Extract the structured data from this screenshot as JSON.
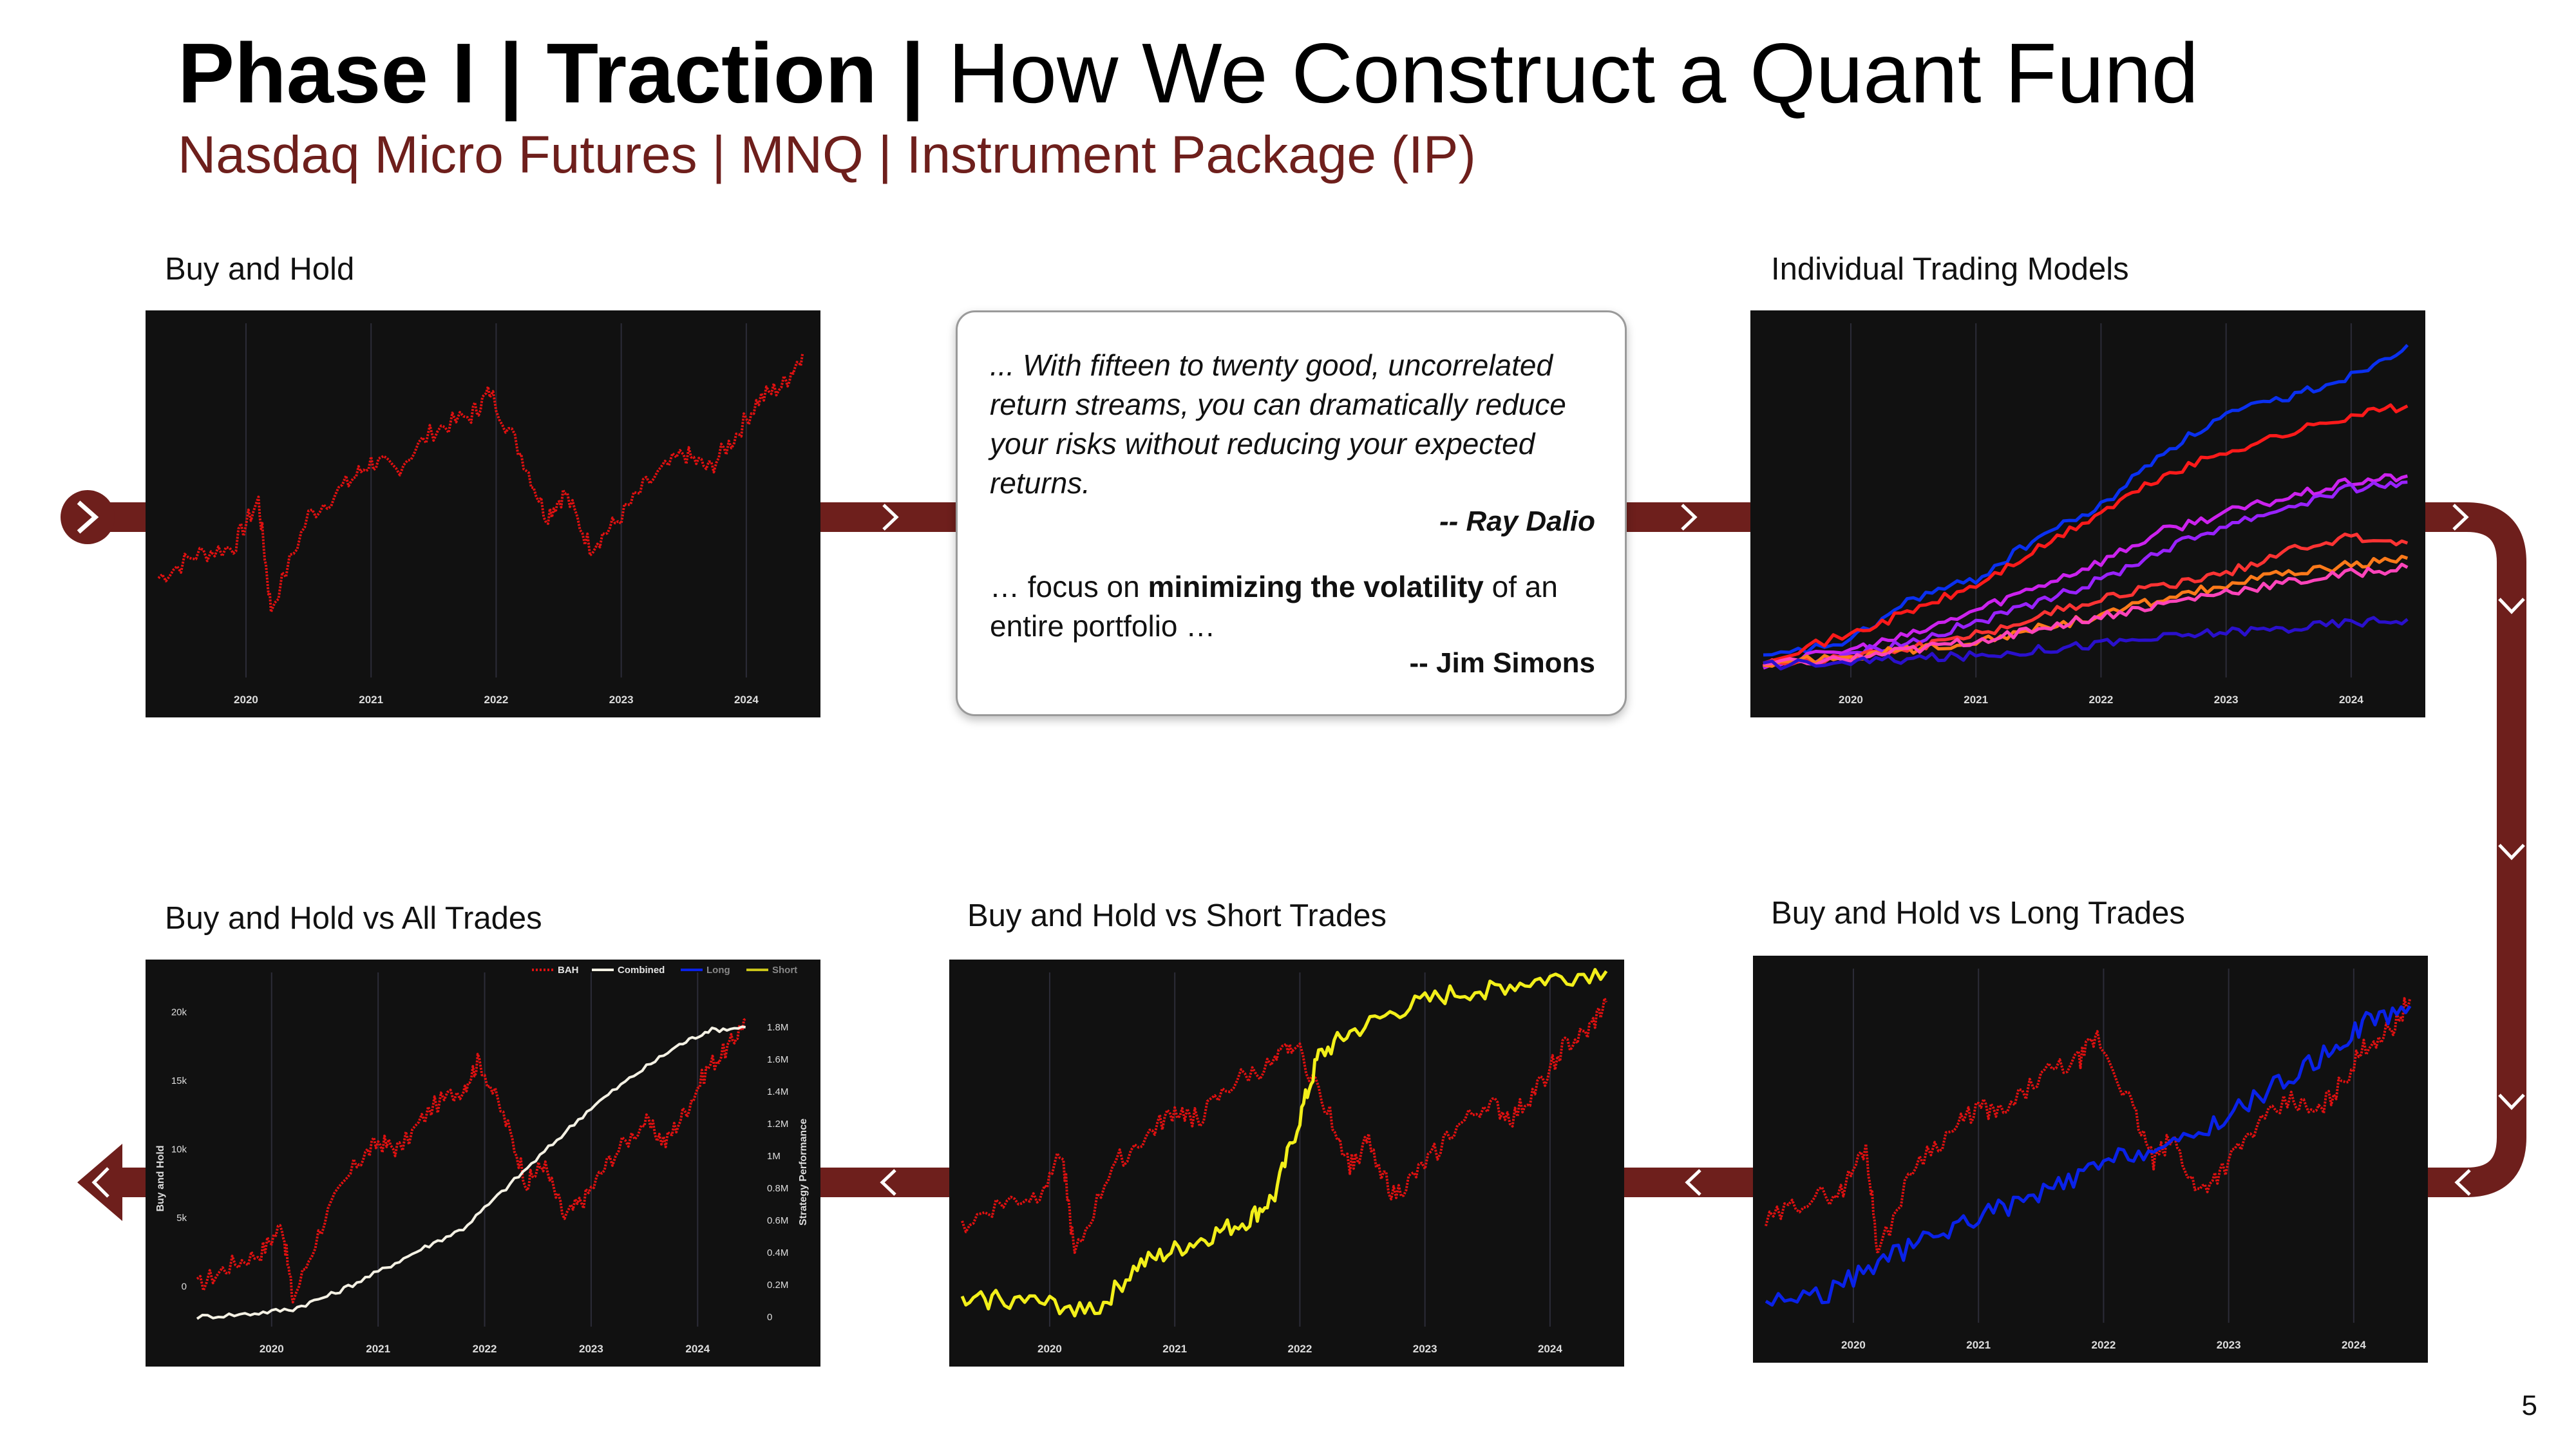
{
  "header": {
    "title_bold": "Phase I | Traction |",
    "title_regular": "How We Construct a Quant Fund",
    "subtitle": "Nasdaq Micro Futures | MNQ | Instrument Package (IP)"
  },
  "labels": {
    "buy_and_hold": "Buy and Hold",
    "individual_models": "Individual Trading Models",
    "bah_vs_long": "Buy and Hold vs Long Trades",
    "bah_vs_short": "Buy and Hold vs Short Trades",
    "bah_vs_all": "Buy and Hold vs All Trades"
  },
  "quote": {
    "dalio_text": "... With fifteen to twenty good, uncorrelated return streams, you can dramatically reduce your risks without reducing your expected returns.",
    "dalio_author": "-- Ray Dalio",
    "simons_prefix": "… focus on ",
    "simons_bold": "minimizing the volatility",
    "simons_suffix": " of an entire portfolio …",
    "simons_author": "-- Jim Simons"
  },
  "page_number": "5",
  "colors": {
    "accent": "#6e1f1c",
    "bah": "#e01010",
    "long": "#0a22e8",
    "short": "#f2ef1a",
    "combined": "#f4f1e4",
    "panel_bg": "#111111"
  },
  "chart_data": [
    {
      "id": "buy_and_hold",
      "type": "line",
      "x_ticks": [
        "2020",
        "2021",
        "2022",
        "2023",
        "2024"
      ],
      "series": [
        {
          "key": "bah",
          "style": "dotted",
          "color": "#e01010",
          "x": [
            2019.3,
            2019.6,
            2019.9,
            2020.1,
            2020.2,
            2020.5,
            2020.8,
            2021.0,
            2021.2,
            2021.5,
            2021.8,
            2021.95,
            2022.2,
            2022.4,
            2022.55,
            2022.75,
            2022.95,
            2023.2,
            2023.5,
            2023.7,
            2023.9,
            2024.1,
            2024.3,
            2024.45
          ],
          "y": [
            6.0,
            7.5,
            8.0,
            11.0,
            4.0,
            10.0,
            12.0,
            13.5,
            13.0,
            15.5,
            16.5,
            18.0,
            14.0,
            10.0,
            11.5,
            8.0,
            9.5,
            12.0,
            14.0,
            13.0,
            15.0,
            17.5,
            18.5,
            20.5
          ]
        }
      ]
    },
    {
      "id": "individual_trading_models",
      "type": "line",
      "x_ticks": [
        "2020",
        "2021",
        "2022",
        "2023",
        "2024"
      ],
      "series": [
        {
          "key": "m1",
          "color": "#0a30f0",
          "x": [
            2019.3,
            2020.0,
            2020.5,
            2021.0,
            2021.5,
            2022.0,
            2022.5,
            2023.0,
            2023.5,
            2024.0,
            2024.45
          ],
          "y": [
            0.02,
            0.08,
            0.22,
            0.28,
            0.42,
            0.52,
            0.7,
            0.82,
            0.88,
            0.95,
            1.05
          ]
        },
        {
          "key": "m2",
          "color": "#ff1a1a",
          "x": [
            2019.3,
            2020.0,
            2020.5,
            2021.0,
            2021.5,
            2022.0,
            2022.5,
            2023.0,
            2023.5,
            2024.0,
            2024.45
          ],
          "y": [
            0.02,
            0.1,
            0.18,
            0.26,
            0.38,
            0.5,
            0.62,
            0.7,
            0.76,
            0.82,
            0.85
          ]
        },
        {
          "key": "m3",
          "color": "#cc22ee",
          "x": [
            2019.3,
            2020.0,
            2020.5,
            2021.0,
            2021.5,
            2022.0,
            2022.5,
            2023.0,
            2023.5,
            2024.0,
            2024.45
          ],
          "y": [
            0.0,
            0.05,
            0.1,
            0.18,
            0.26,
            0.34,
            0.44,
            0.5,
            0.55,
            0.6,
            0.62
          ]
        },
        {
          "key": "m4",
          "color": "#9922ff",
          "x": [
            2019.3,
            2020.0,
            2020.5,
            2021.0,
            2021.5,
            2022.0,
            2022.5,
            2023.0,
            2023.5,
            2024.0,
            2024.45
          ],
          "y": [
            0.0,
            0.04,
            0.08,
            0.14,
            0.2,
            0.28,
            0.38,
            0.46,
            0.52,
            0.58,
            0.6
          ]
        },
        {
          "key": "m5",
          "color": "#ff3333",
          "x": [
            2019.3,
            2020.0,
            2020.5,
            2021.0,
            2021.5,
            2022.0,
            2022.5,
            2023.0,
            2023.5,
            2024.0,
            2024.45
          ],
          "y": [
            0.0,
            0.03,
            0.06,
            0.1,
            0.16,
            0.22,
            0.26,
            0.3,
            0.38,
            0.42,
            0.4
          ]
        },
        {
          "key": "m6",
          "color": "#ff7a1a",
          "x": [
            2019.3,
            2020.0,
            2020.5,
            2021.0,
            2021.5,
            2022.0,
            2022.5,
            2023.0,
            2023.5,
            2024.0,
            2024.45
          ],
          "y": [
            0.0,
            0.03,
            0.05,
            0.08,
            0.12,
            0.16,
            0.22,
            0.26,
            0.3,
            0.33,
            0.35
          ]
        },
        {
          "key": "m7",
          "color": "#ff44bb",
          "x": [
            2019.3,
            2020.0,
            2020.5,
            2021.0,
            2021.5,
            2022.0,
            2022.5,
            2023.0,
            2023.5,
            2024.0,
            2024.45
          ],
          "y": [
            0.0,
            0.02,
            0.05,
            0.08,
            0.12,
            0.16,
            0.2,
            0.24,
            0.27,
            0.3,
            0.32
          ]
        },
        {
          "key": "m8",
          "color": "#2a10cc",
          "x": [
            2019.3,
            2020.0,
            2020.5,
            2021.0,
            2021.5,
            2022.0,
            2022.5,
            2023.0,
            2023.5,
            2024.0,
            2024.45
          ],
          "y": [
            0.0,
            0.01,
            0.02,
            0.03,
            0.05,
            0.07,
            0.09,
            0.11,
            0.12,
            0.14,
            0.15
          ]
        }
      ]
    },
    {
      "id": "bah_vs_long",
      "type": "line",
      "x_ticks": [
        "2020",
        "2021",
        "2022",
        "2023",
        "2024"
      ],
      "series": [
        {
          "key": "bah",
          "style": "dotted",
          "color": "#e01010",
          "x": [
            2019.3,
            2019.6,
            2019.9,
            2020.1,
            2020.2,
            2020.5,
            2020.8,
            2021.0,
            2021.2,
            2021.5,
            2021.8,
            2021.95,
            2022.2,
            2022.4,
            2022.55,
            2022.75,
            2022.95,
            2023.2,
            2023.5,
            2023.7,
            2023.9,
            2024.1,
            2024.3,
            2024.45
          ],
          "y": [
            6.0,
            7.5,
            8.0,
            11.0,
            4.0,
            10.0,
            12.0,
            13.5,
            13.0,
            15.5,
            16.5,
            18.0,
            14.0,
            10.0,
            11.5,
            8.0,
            9.5,
            12.0,
            14.0,
            13.0,
            15.0,
            17.5,
            18.5,
            20.5
          ]
        },
        {
          "key": "long",
          "color": "#0a22e8",
          "x": [
            2019.3,
            2019.8,
            2020.2,
            2020.6,
            2021.0,
            2021.4,
            2021.8,
            2022.2,
            2022.6,
            2023.0,
            2023.4,
            2023.8,
            2024.1,
            2024.45
          ],
          "y": [
            1.0,
            1.5,
            3.5,
            5.0,
            6.5,
            7.5,
            9.0,
            10.5,
            11.0,
            13.0,
            15.0,
            17.0,
            19.0,
            20.0
          ]
        }
      ]
    },
    {
      "id": "bah_vs_short",
      "type": "line",
      "x_ticks": [
        "2020",
        "2021",
        "2022",
        "2023",
        "2024"
      ],
      "series": [
        {
          "key": "bah",
          "style": "dotted",
          "color": "#e01010",
          "x": [
            2019.3,
            2019.6,
            2019.9,
            2020.1,
            2020.2,
            2020.5,
            2020.8,
            2021.0,
            2021.2,
            2021.5,
            2021.8,
            2021.95,
            2022.2,
            2022.4,
            2022.55,
            2022.75,
            2022.95,
            2023.2,
            2023.5,
            2023.7,
            2023.9,
            2024.1,
            2024.3,
            2024.45
          ],
          "y": [
            6.0,
            7.5,
            8.0,
            11.0,
            4.0,
            10.0,
            12.0,
            13.5,
            13.0,
            15.5,
            16.5,
            18.0,
            14.0,
            10.0,
            11.5,
            8.0,
            9.5,
            12.0,
            14.0,
            13.0,
            15.0,
            17.5,
            18.5,
            20.5
          ]
        },
        {
          "key": "short",
          "color": "#f2ef1a",
          "x": [
            2019.3,
            2019.6,
            2020.0,
            2020.4,
            2020.7,
            2021.0,
            2021.3,
            2021.6,
            2021.8,
            2022.0,
            2022.15,
            2022.4,
            2022.8,
            2023.2,
            2023.6,
            2024.0,
            2024.45
          ],
          "y": [
            1.0,
            1.5,
            1.0,
            0.8,
            3.5,
            4.5,
            5.5,
            6.5,
            8.0,
            13.0,
            17.0,
            18.5,
            20.0,
            21.0,
            21.5,
            22.0,
            22.5
          ]
        }
      ]
    },
    {
      "id": "bah_vs_all",
      "type": "line",
      "legend": [
        "BAH",
        "Combined",
        "Long",
        "Short"
      ],
      "legend_placement": "top-right",
      "x_ticks": [
        "2020",
        "2021",
        "2022",
        "2023",
        "2024"
      ],
      "y_left": {
        "label": "Buy and Hold",
        "ticks": [
          "0",
          "5k",
          "10k",
          "15k",
          "20k"
        ]
      },
      "y_right": {
        "label": "Strategy Performance",
        "ticks": [
          "0",
          "0.2M",
          "0.4M",
          "0.6M",
          "0.8M",
          "1M",
          "1.2M",
          "1.4M",
          "1.6M",
          "1.8M"
        ]
      },
      "series": [
        {
          "key": "bah",
          "name": "BAH",
          "style": "dotted",
          "color": "#e01010",
          "axis": "left",
          "x": [
            2019.3,
            2019.6,
            2019.9,
            2020.1,
            2020.2,
            2020.5,
            2020.8,
            2021.0,
            2021.2,
            2021.5,
            2021.8,
            2021.95,
            2022.2,
            2022.4,
            2022.55,
            2022.75,
            2022.95,
            2023.2,
            2023.5,
            2023.7,
            2023.9,
            2024.1,
            2024.3,
            2024.45
          ],
          "y": [
            0,
            1500,
            2500,
            4500,
            -1000,
            5000,
            9000,
            10500,
            10000,
            13000,
            14500,
            16500,
            12000,
            7500,
            9000,
            5000,
            6500,
            9500,
            12000,
            10500,
            13000,
            16000,
            17500,
            19500
          ]
        },
        {
          "key": "combined",
          "name": "Combined",
          "color": "#f4f1e4",
          "axis": "right",
          "x": [
            2019.3,
            2019.8,
            2020.2,
            2020.6,
            2021.0,
            2021.4,
            2021.8,
            2022.2,
            2022.6,
            2023.0,
            2023.4,
            2023.8,
            2024.1,
            2024.45
          ],
          "y": [
            0.0,
            0.02,
            0.05,
            0.15,
            0.28,
            0.42,
            0.55,
            0.8,
            1.05,
            1.3,
            1.5,
            1.68,
            1.78,
            1.8
          ]
        }
      ]
    }
  ]
}
